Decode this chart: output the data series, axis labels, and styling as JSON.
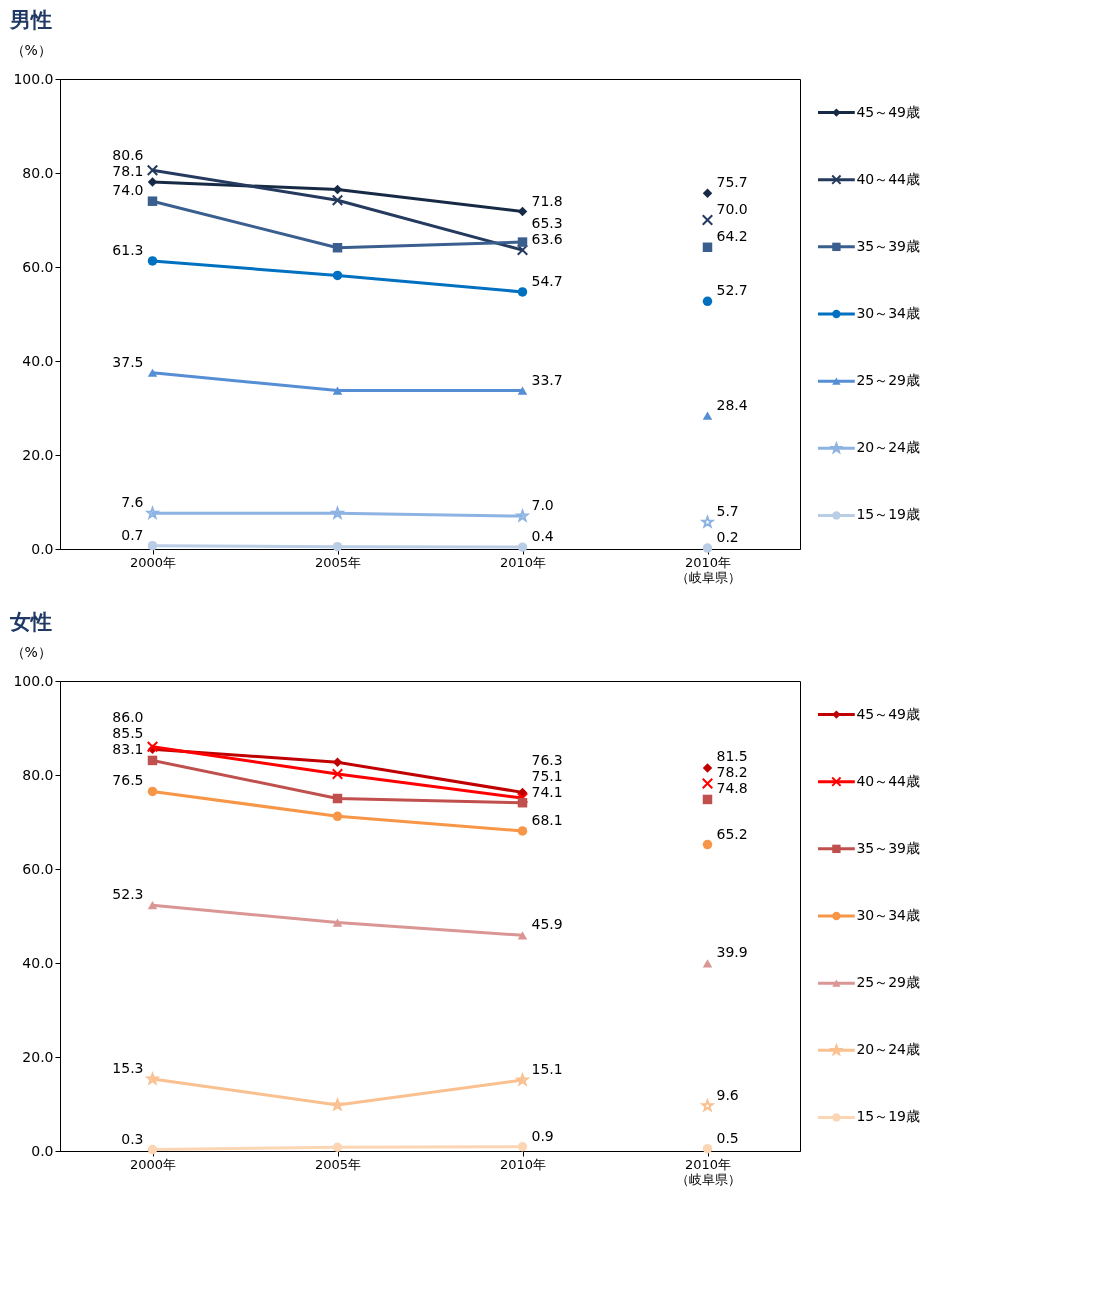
{
  "chart_data": [
    {
      "type": "line",
      "title": "男性",
      "ylabel": "（%）",
      "categories": [
        "2000年",
        "2005年",
        "2010年",
        "2010年（岐阜県）"
      ],
      "ylim": [
        0,
        100
      ],
      "yticks": [
        {
          "value": 0,
          "label": "0.0"
        },
        {
          "value": 20,
          "label": "20.0"
        },
        {
          "value": 40,
          "label": "40.0"
        },
        {
          "value": 60,
          "label": "60.0"
        },
        {
          "value": 80,
          "label": "80.0"
        },
        {
          "value": 100,
          "label": "100.0"
        }
      ],
      "grid": false,
      "legend": "right",
      "series": [
        {
          "name": "45～49歳",
          "color": "#172a45",
          "marker": "diamond",
          "values": [
            78.1,
            76.5,
            71.8,
            null
          ],
          "value_labels": [
            "78.1",
            null,
            "71.8",
            null
          ]
        },
        {
          "name": "40～44歳",
          "color": "#243a5e",
          "marker": "cross",
          "values": [
            80.6,
            74.2,
            63.6,
            null
          ],
          "value_labels": [
            "80.6",
            null,
            "63.6",
            null
          ]
        },
        {
          "name": "35～39歳",
          "color": "#3a5f8f",
          "marker": "square",
          "values": [
            74.0,
            64.1,
            65.3,
            null
          ],
          "value_labels": [
            "74.0",
            null,
            "65.3",
            null
          ]
        },
        {
          "name": "30～34歳",
          "color": "#0070c0",
          "marker": "circle",
          "values": [
            61.3,
            58.2,
            54.7,
            null
          ],
          "value_labels": [
            "61.3",
            null,
            "54.7",
            null
          ]
        },
        {
          "name": "25～29歳",
          "color": "#558ed5",
          "marker": "triangle",
          "values": [
            37.5,
            33.7,
            33.7,
            null
          ],
          "value_labels": [
            "37.5",
            null,
            "33.7",
            null
          ]
        },
        {
          "name": "20～24歳",
          "color": "#8db3e2",
          "marker": "star",
          "values": [
            7.6,
            7.6,
            7.0,
            null
          ],
          "value_labels": [
            "7.6",
            null,
            "7.0",
            null
          ]
        },
        {
          "name": "15～19歳",
          "color": "#b9cde5",
          "marker": "circle",
          "values": [
            0.7,
            0.5,
            0.4,
            null
          ],
          "value_labels": [
            "0.7",
            null,
            "0.4",
            null
          ]
        },
        {
          "type": "scatter",
          "color": "#172a45",
          "marker": "diamond",
          "values": [
            null,
            null,
            null,
            75.7
          ],
          "value_labels": [
            null,
            null,
            null,
            "75.7"
          ]
        },
        {
          "type": "scatter",
          "color": "#243a5e",
          "marker": "cross",
          "values": [
            null,
            null,
            null,
            70.0
          ],
          "value_labels": [
            null,
            null,
            null,
            "70.0"
          ]
        },
        {
          "type": "scatter",
          "color": "#3a5f8f",
          "marker": "square",
          "values": [
            null,
            null,
            null,
            64.2
          ],
          "value_labels": [
            null,
            null,
            null,
            "64.2"
          ]
        },
        {
          "type": "scatter",
          "color": "#0070c0",
          "marker": "circle",
          "values": [
            null,
            null,
            null,
            52.7
          ],
          "value_labels": [
            null,
            null,
            null,
            "52.7"
          ]
        },
        {
          "type": "scatter",
          "color": "#558ed5",
          "marker": "triangle",
          "values": [
            null,
            null,
            null,
            28.4
          ],
          "value_labels": [
            null,
            null,
            null,
            "28.4"
          ]
        },
        {
          "type": "scatter",
          "color": "#8db3e2",
          "marker": "star",
          "values": [
            null,
            null,
            null,
            5.7
          ],
          "value_labels": [
            null,
            null,
            null,
            "5.7"
          ]
        },
        {
          "type": "scatter",
          "color": "#b9cde5",
          "marker": "circle",
          "values": [
            null,
            null,
            null,
            0.2
          ],
          "value_labels": [
            null,
            null,
            null,
            "0.2"
          ]
        }
      ]
    },
    {
      "type": "line",
      "title": "女性",
      "ylabel": "（%）",
      "categories": [
        "2000年",
        "2005年",
        "2010年",
        "2010年（岐阜県）"
      ],
      "ylim": [
        0,
        100
      ],
      "yticks": [
        {
          "value": 0,
          "label": "0.0"
        },
        {
          "value": 20,
          "label": "20.0"
        },
        {
          "value": 40,
          "label": "40.0"
        },
        {
          "value": 60,
          "label": "60.0"
        },
        {
          "value": 80,
          "label": "80.0"
        },
        {
          "value": 100,
          "label": "100.0"
        }
      ],
      "grid": false,
      "legend": "right",
      "series": [
        {
          "name": "45～49歳",
          "color": "#c00000",
          "marker": "diamond",
          "values": [
            85.5,
            82.7,
            76.3,
            null
          ],
          "value_labels": [
            "85.5",
            null,
            "76.3",
            null
          ]
        },
        {
          "name": "40～44歳",
          "color": "#ff0000",
          "marker": "cross",
          "values": [
            86.0,
            80.2,
            75.1,
            null
          ],
          "value_labels": [
            "86.0",
            null,
            "75.1",
            null
          ]
        },
        {
          "name": "35～39歳",
          "color": "#c0504d",
          "marker": "square",
          "values": [
            83.1,
            75.0,
            74.1,
            null
          ],
          "value_labels": [
            "83.1",
            null,
            "74.1",
            null
          ]
        },
        {
          "name": "30～34歳",
          "color": "#f79646",
          "marker": "circle",
          "values": [
            76.5,
            71.2,
            68.1,
            null
          ],
          "value_labels": [
            "76.5",
            null,
            "68.1",
            null
          ]
        },
        {
          "name": "25～29歳",
          "color": "#d99694",
          "marker": "triangle",
          "values": [
            52.3,
            48.6,
            45.9,
            null
          ],
          "value_labels": [
            "52.3",
            null,
            "45.9",
            null
          ]
        },
        {
          "name": "20～24歳",
          "color": "#fac090",
          "marker": "star",
          "values": [
            15.3,
            9.8,
            15.1,
            null
          ],
          "value_labels": [
            "15.3",
            null,
            "15.1",
            null
          ]
        },
        {
          "name": "15～19歳",
          "color": "#fcd5b5",
          "marker": "circle",
          "values": [
            0.3,
            0.8,
            0.9,
            null
          ],
          "value_labels": [
            "0.3",
            null,
            "0.9",
            null
          ]
        },
        {
          "type": "scatter",
          "color": "#c00000",
          "marker": "diamond",
          "values": [
            null,
            null,
            null,
            81.5
          ],
          "value_labels": [
            null,
            null,
            null,
            "81.5"
          ]
        },
        {
          "type": "scatter",
          "color": "#ff0000",
          "marker": "cross",
          "values": [
            null,
            null,
            null,
            78.2
          ],
          "value_labels": [
            null,
            null,
            null,
            "78.2"
          ]
        },
        {
          "type": "scatter",
          "color": "#c0504d",
          "marker": "square",
          "values": [
            null,
            null,
            null,
            74.8
          ],
          "value_labels": [
            null,
            null,
            null,
            "74.8"
          ]
        },
        {
          "type": "scatter",
          "color": "#f79646",
          "marker": "circle",
          "values": [
            null,
            null,
            null,
            65.2
          ],
          "value_labels": [
            null,
            null,
            null,
            "65.2"
          ]
        },
        {
          "type": "scatter",
          "color": "#d99694",
          "marker": "triangle",
          "values": [
            null,
            null,
            null,
            39.9
          ],
          "value_labels": [
            null,
            null,
            null,
            "39.9"
          ]
        },
        {
          "type": "scatter",
          "color": "#fac090",
          "marker": "star",
          "values": [
            null,
            null,
            null,
            9.6
          ],
          "value_labels": [
            null,
            null,
            null,
            "9.6"
          ]
        },
        {
          "type": "scatter",
          "color": "#fcd5b5",
          "marker": "circle",
          "values": [
            null,
            null,
            null,
            0.5
          ],
          "value_labels": [
            null,
            null,
            null,
            "0.5"
          ]
        }
      ]
    }
  ]
}
